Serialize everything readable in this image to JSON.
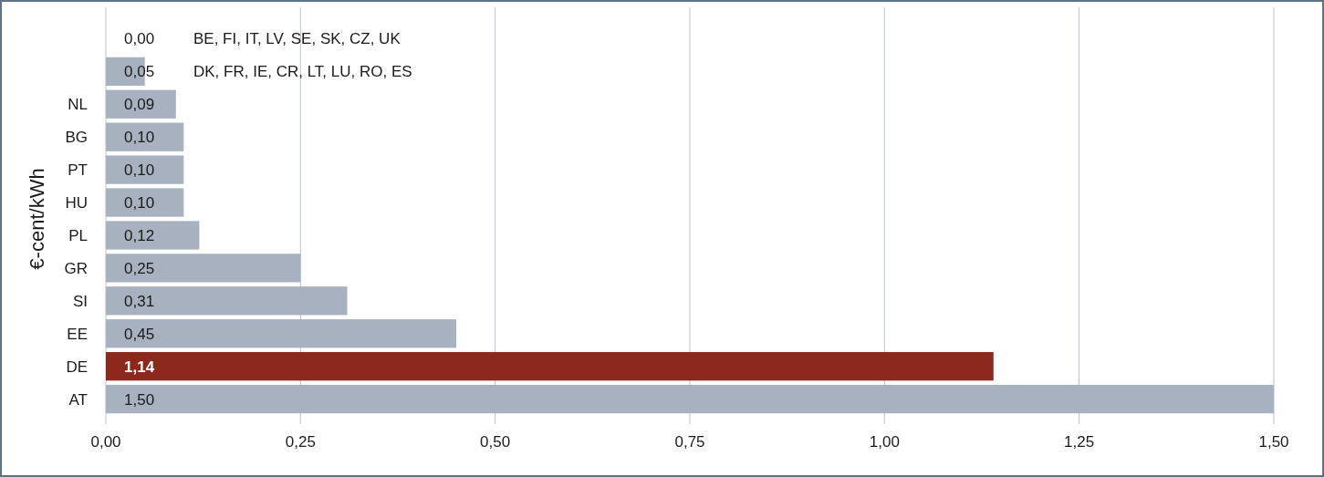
{
  "chart_data": {
    "type": "bar",
    "orientation": "horizontal",
    "ylabel": "€-cent/kWh",
    "categories": [
      "BE, FI, IT, LV, SE, SK, CZ, UK",
      "DK, FR, IE, CR, LT, LU, RO, ES",
      "NL",
      "BG",
      "PT",
      "HU",
      "PL",
      "GR",
      "SI",
      "EE",
      "DE",
      "AT"
    ],
    "values": [
      0.0,
      0.05,
      0.09,
      0.1,
      0.1,
      0.1,
      0.12,
      0.25,
      0.31,
      0.45,
      1.14,
      1.5
    ],
    "colors": [
      "#a7b1bf",
      "#a7b1bf",
      "#a7b1bf",
      "#a7b1bf",
      "#a7b1bf",
      "#a7b1bf",
      "#a7b1bf",
      "#a7b1bf",
      "#a7b1bf",
      "#a7b1bf",
      "#8c281c",
      "#a7b1bf"
    ],
    "xlim": [
      0,
      1.5
    ],
    "xticks": [
      {
        "value": 0,
        "label": "0,00"
      },
      {
        "value": 0.25,
        "label": "0,25"
      },
      {
        "value": 0.5,
        "label": "0,50"
      },
      {
        "value": 0.75,
        "label": "0,75"
      },
      {
        "value": 1,
        "label": "1,00"
      },
      {
        "value": 1.25,
        "label": "1,25"
      },
      {
        "value": 1.5,
        "label": "1,50"
      }
    ],
    "value_labels": [
      "0,00",
      "0,05",
      "0,09",
      "0,10",
      "0,10",
      "0,10",
      "0,12",
      "0,25",
      "0,31",
      "0,45",
      "1,14",
      "1,50"
    ],
    "grid": "x"
  }
}
